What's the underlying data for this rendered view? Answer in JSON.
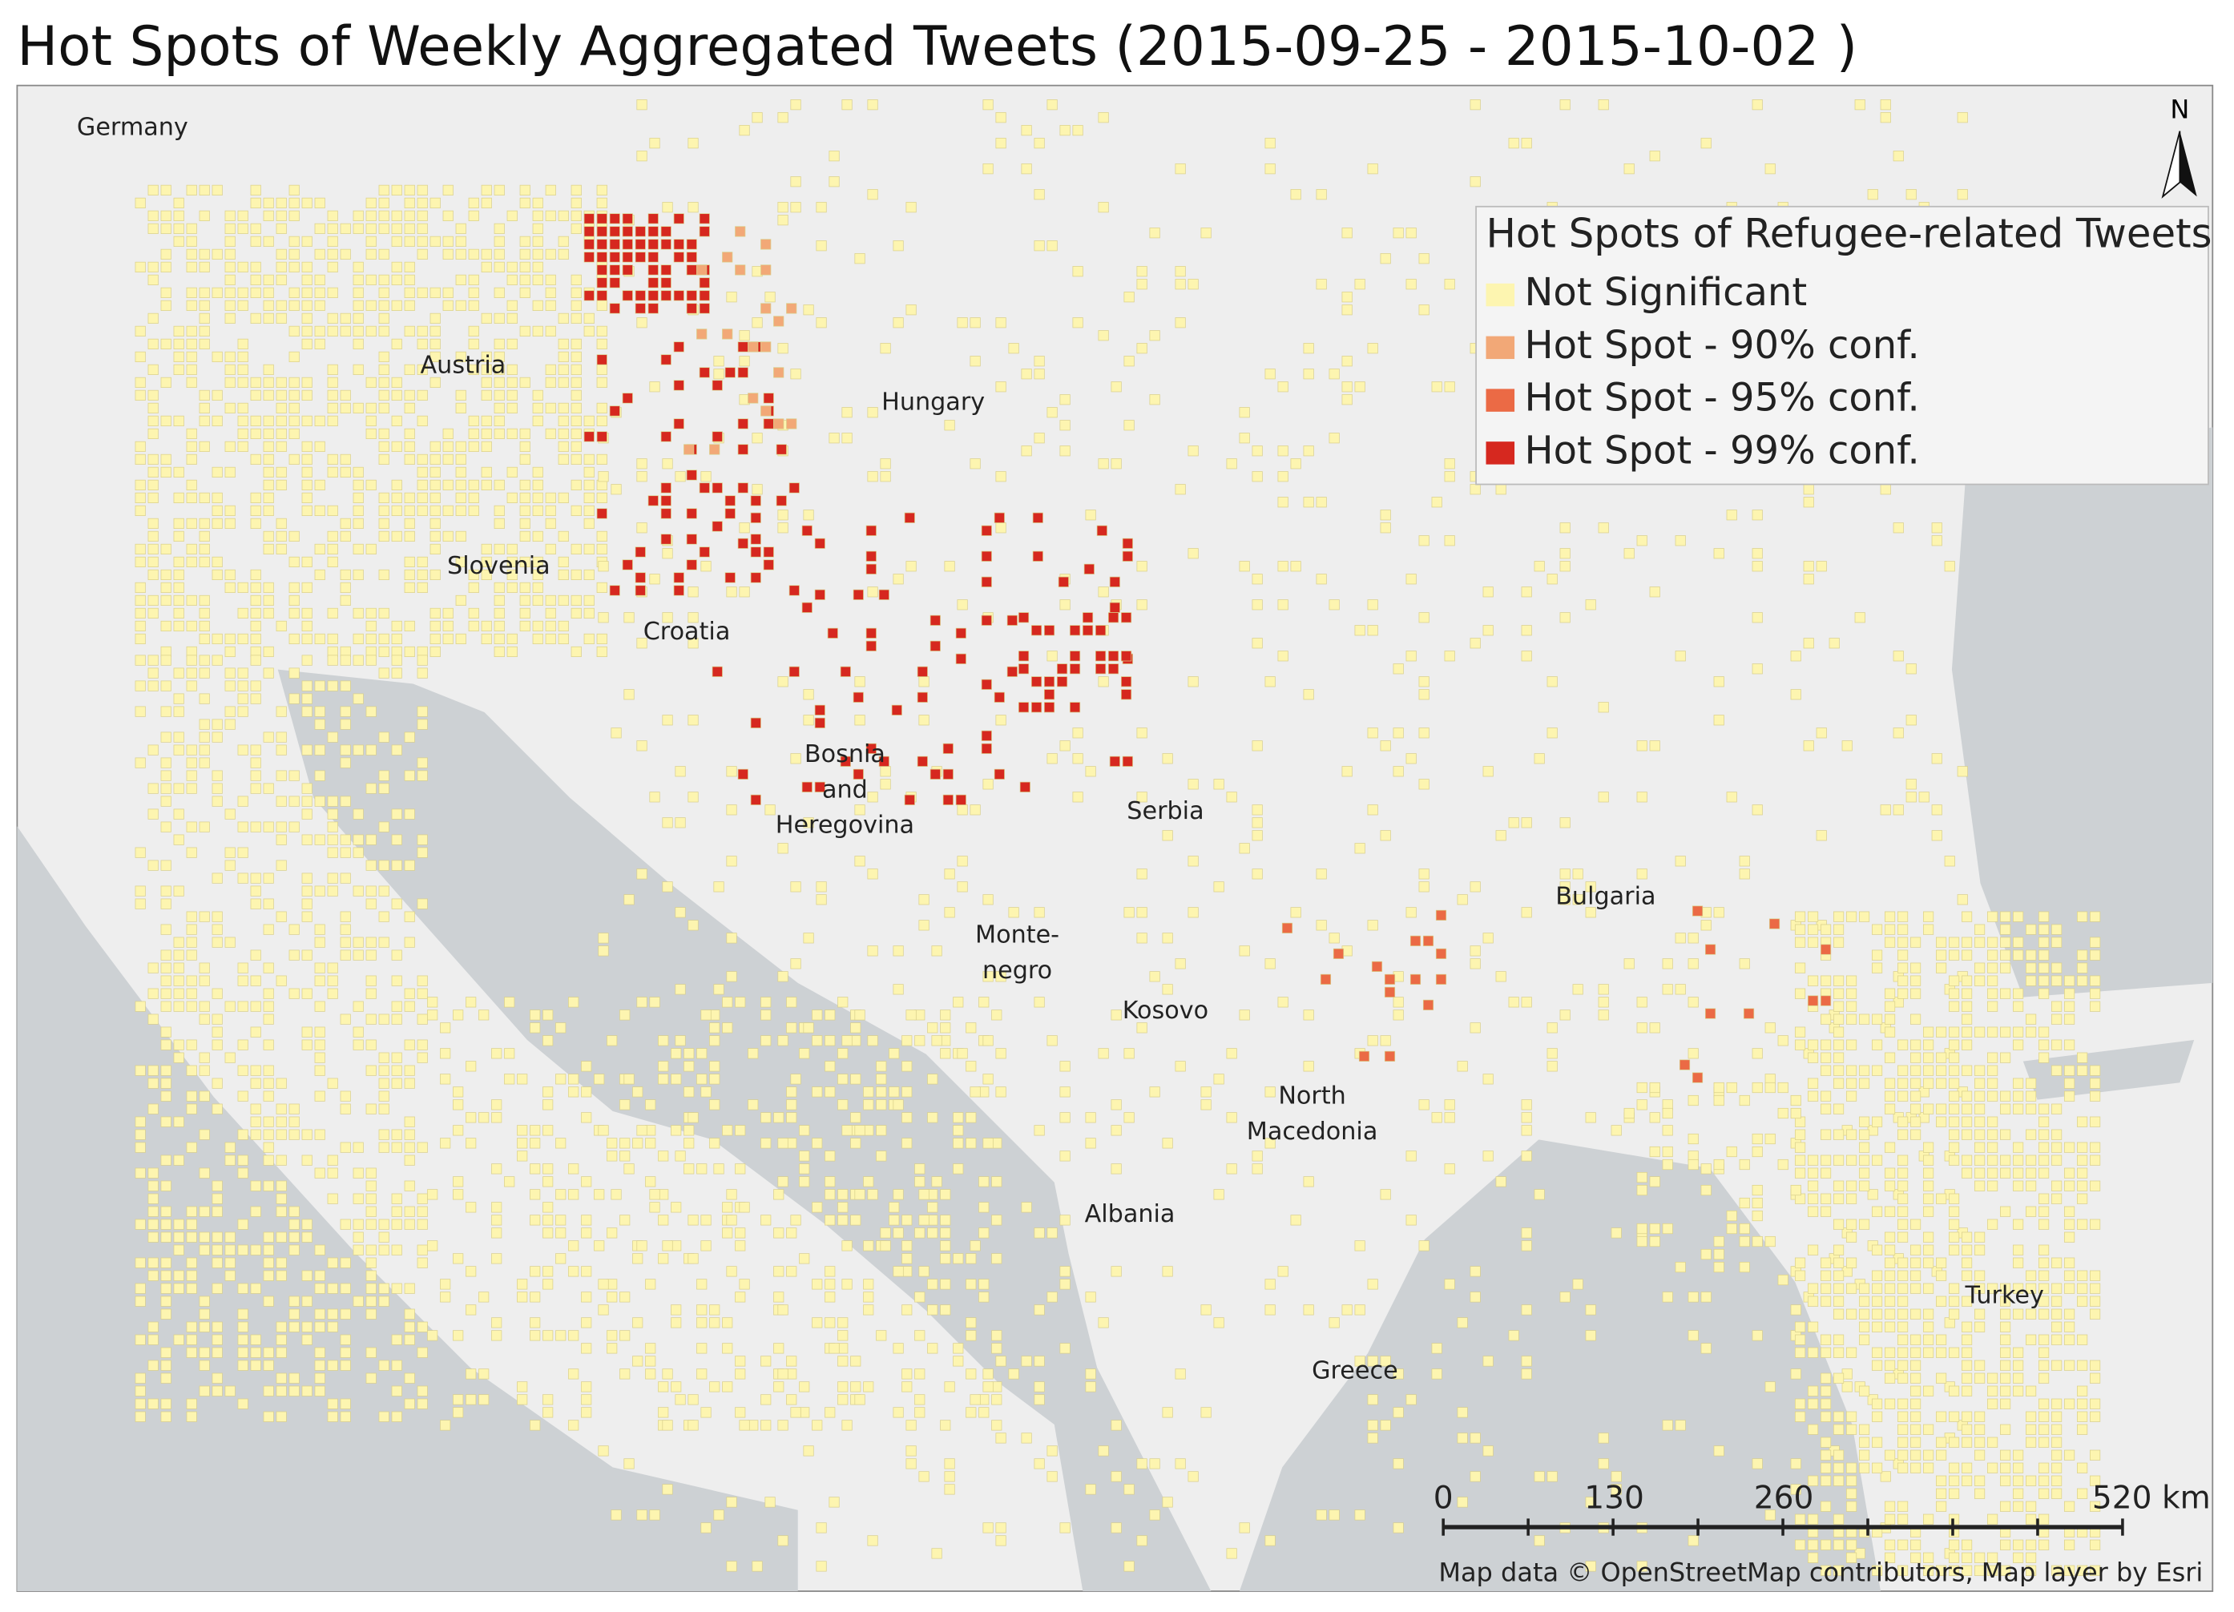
{
  "header": {
    "title": "Hot Spots of Weekly Aggregated Tweets (2015-09-25 - 2015-10-02 )"
  },
  "legend": {
    "title": "Hot Spots of Refugee-related Tweets",
    "items": [
      {
        "label": "Not Significant",
        "color": "#fdf5b0"
      },
      {
        "label": "Hot Spot - 90% conf.",
        "color": "#f2a877"
      },
      {
        "label": "Hot Spot - 95% conf.",
        "color": "#eb6a45"
      },
      {
        "label": "Hot Spot - 99% conf.",
        "color": "#d6281f"
      }
    ]
  },
  "places": [
    {
      "lines": [
        "Germany"
      ]
    },
    {
      "lines": [
        "Austria"
      ]
    },
    {
      "lines": [
        "Hungary"
      ]
    },
    {
      "lines": [
        "Slovenia"
      ]
    },
    {
      "lines": [
        "Croatia"
      ]
    },
    {
      "lines": [
        "Bosnia",
        "and",
        "Heregovina"
      ]
    },
    {
      "lines": [
        "Serbia"
      ]
    },
    {
      "lines": [
        "Bulgaria"
      ]
    },
    {
      "lines": [
        "Monte-",
        "negro"
      ]
    },
    {
      "lines": [
        "Kosovo"
      ]
    },
    {
      "lines": [
        "North",
        "Macedonia"
      ]
    },
    {
      "lines": [
        "Albania"
      ]
    },
    {
      "lines": [
        "Greece"
      ]
    },
    {
      "lines": [
        "Turkey"
      ]
    }
  ],
  "north": "N",
  "scale_bar": [
    "0",
    "130",
    "260",
    "520 km"
  ],
  "attribution": "Map data © OpenStreetMap contributors, Map layer by Esri"
}
